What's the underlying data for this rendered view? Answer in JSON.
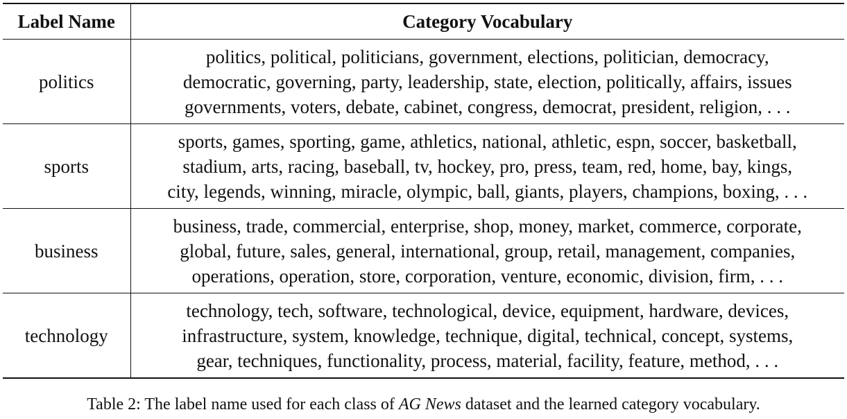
{
  "table": {
    "headers": {
      "label": "Label Name",
      "vocab": "Category Vocabulary"
    },
    "rows": [
      {
        "label": "politics",
        "lines": [
          "politics, political, politicians, government, elections, politician, democracy,",
          "democratic, governing, party, leadership, state, election, politically, affairs, issues",
          "governments, voters, debate, cabinet, congress, democrat, president, religion, . . ."
        ]
      },
      {
        "label": "sports",
        "lines": [
          "sports, games, sporting, game, athletics, national, athletic, espn, soccer, basketball,",
          "stadium, arts, racing, baseball, tv, hockey, pro, press, team, red, home, bay, kings,",
          "city, legends, winning, miracle, olympic, ball, giants, players, champions, boxing, . . ."
        ]
      },
      {
        "label": "business",
        "lines": [
          "business, trade, commercial, enterprise, shop, money, market, commerce, corporate,",
          "global, future, sales, general, international, group, retail, management, companies,",
          "operations, operation, store, corporation, venture, economic, division, firm, . . ."
        ]
      },
      {
        "label": "technology",
        "lines": [
          "technology, tech, software, technological, device, equipment, hardware, devices,",
          "infrastructure, system, knowledge, technique, digital, technical, concept, systems,",
          "gear, techniques, functionality, process, material, facility, feature, method, . . ."
        ]
      }
    ]
  },
  "caption": {
    "prefix": "Table 2: The label name used for each class of ",
    "dataset": "AG News",
    "suffix": " dataset and the learned category vocabulary."
  }
}
